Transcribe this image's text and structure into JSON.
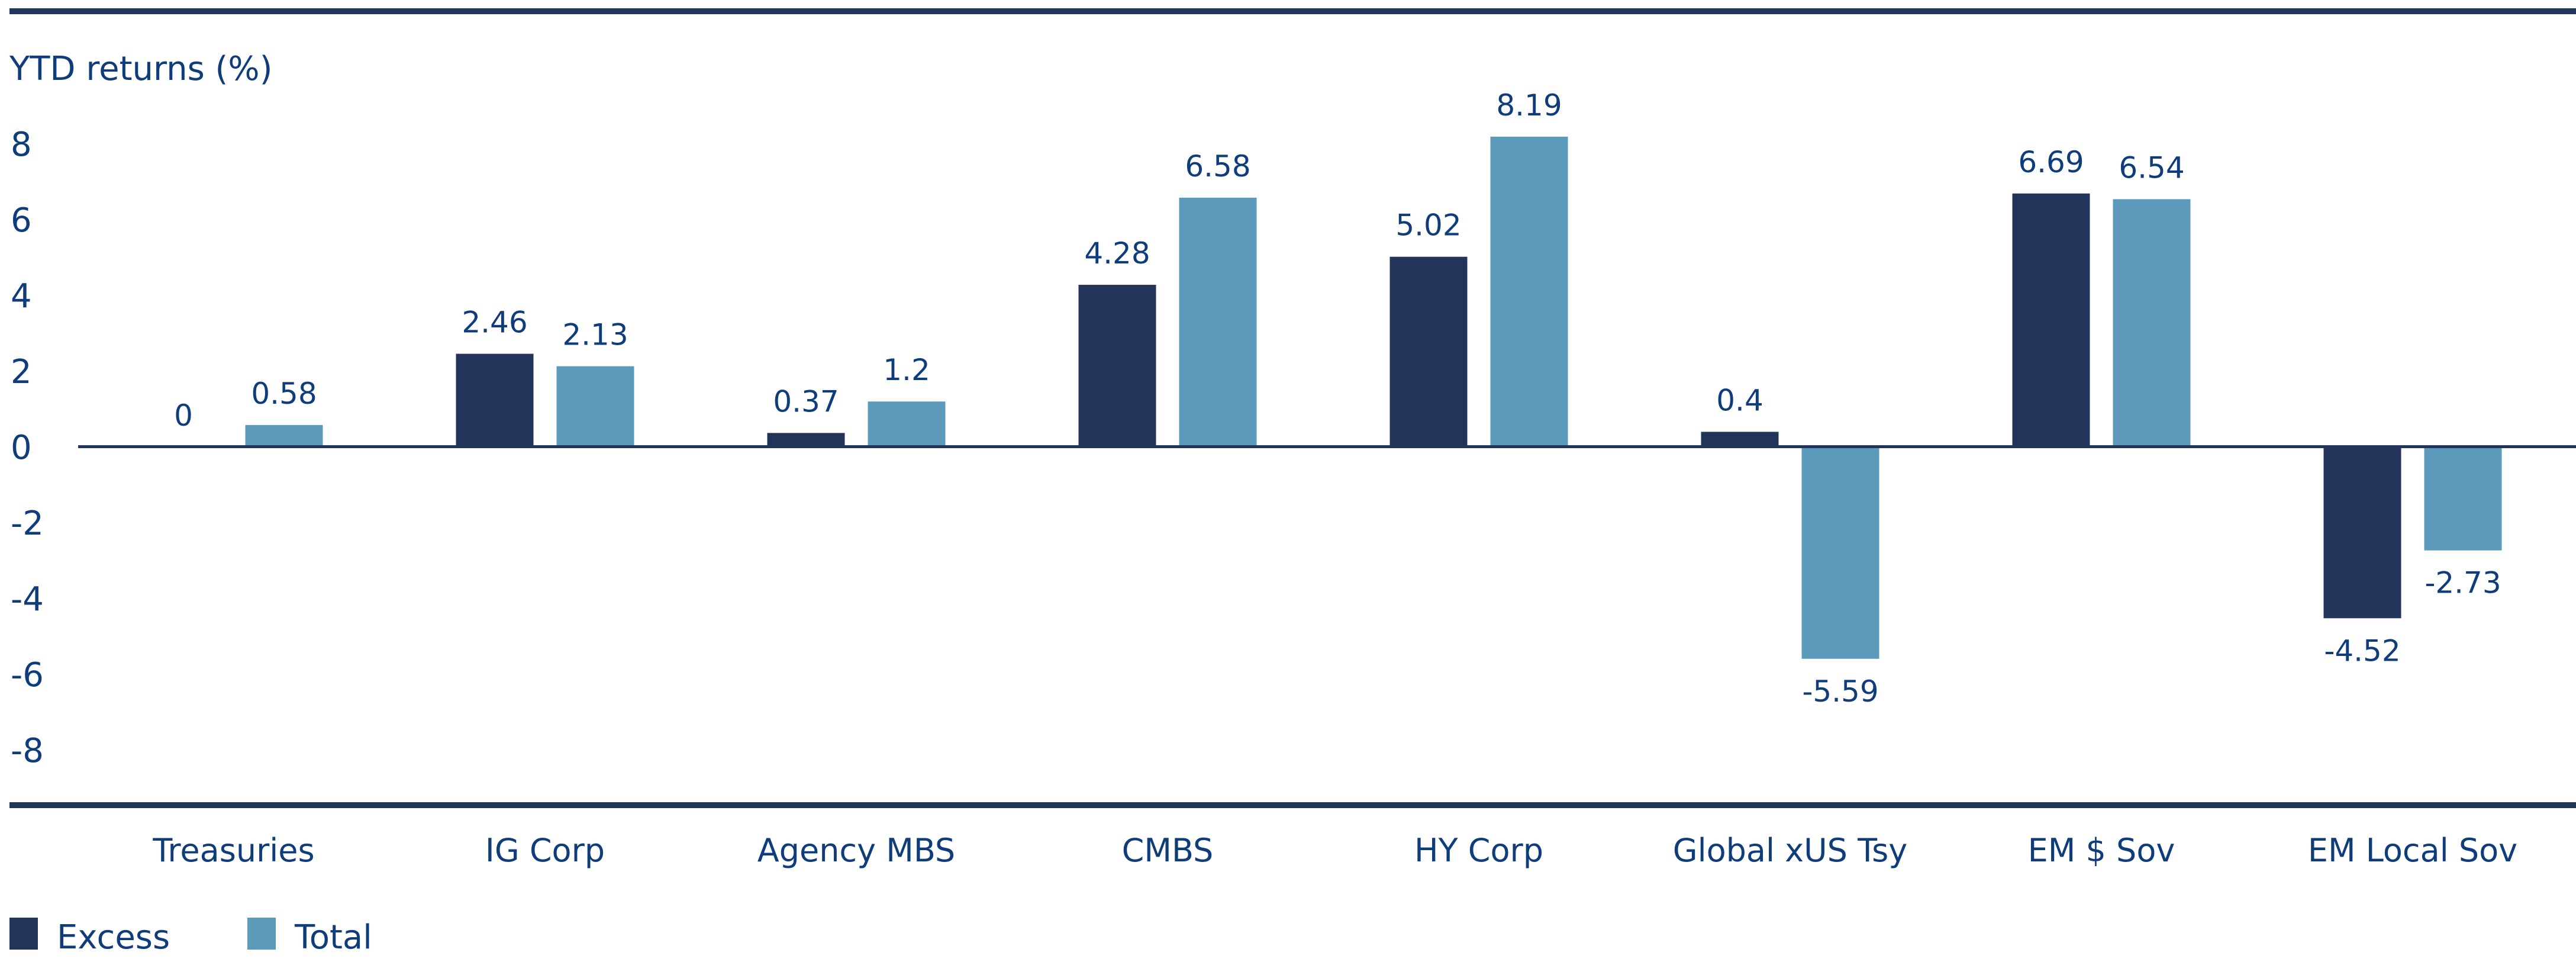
{
  "chart_data": {
    "type": "bar",
    "ylabel": "YTD returns (%)",
    "ylim": [
      -8,
      8
    ],
    "yticks": [
      8,
      6,
      4,
      2,
      0,
      -2,
      -4,
      -6,
      -8
    ],
    "grid": false,
    "legend_placement": "bottom-left",
    "categories": [
      "Treasuries",
      "IG Corp",
      "Agency MBS",
      "CMBS",
      "HY Corp",
      "Global xUS Tsy",
      "EM $ Sov",
      "EM Local Sov"
    ],
    "series": [
      {
        "name": "Excess",
        "color": "#22345a",
        "values": [
          0,
          2.46,
          0.37,
          4.28,
          5.02,
          0.4,
          6.69,
          -4.52
        ]
      },
      {
        "name": "Total",
        "color": "#5b9aba",
        "values": [
          0.58,
          2.13,
          1.2,
          6.58,
          8.19,
          -5.59,
          6.54,
          -2.73
        ]
      }
    ],
    "colors": {
      "text": "#0f3d7c",
      "rule": "#22345a"
    }
  }
}
